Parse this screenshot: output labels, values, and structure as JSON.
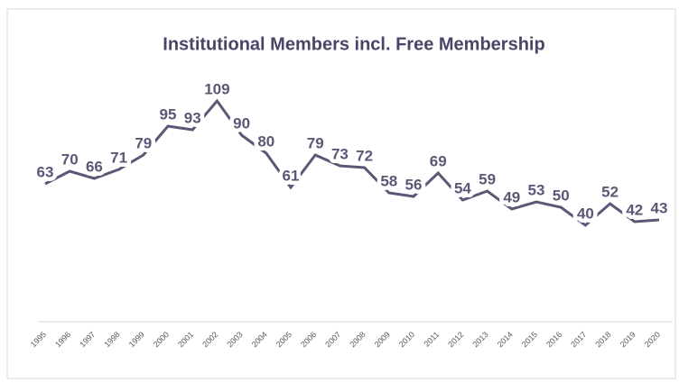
{
  "chart_data": {
    "type": "line",
    "title": "Institutional Members incl. Free Membership",
    "categories": [
      "1995",
      "1996",
      "1997",
      "1998",
      "1999",
      "2000",
      "2001",
      "2002",
      "2003",
      "2004",
      "2005",
      "2006",
      "2007",
      "2008",
      "2009",
      "2010",
      "2011",
      "2012",
      "2013",
      "2014",
      "2015",
      "2016",
      "2017",
      "2018",
      "2019",
      "2020"
    ],
    "values": [
      63,
      70,
      66,
      71,
      79,
      95,
      93,
      109,
      90,
      80,
      61,
      79,
      73,
      72,
      58,
      56,
      69,
      54,
      59,
      49,
      53,
      50,
      40,
      52,
      42,
      43
    ],
    "color": "#5b5776",
    "ylim": [
      0,
      120
    ]
  }
}
